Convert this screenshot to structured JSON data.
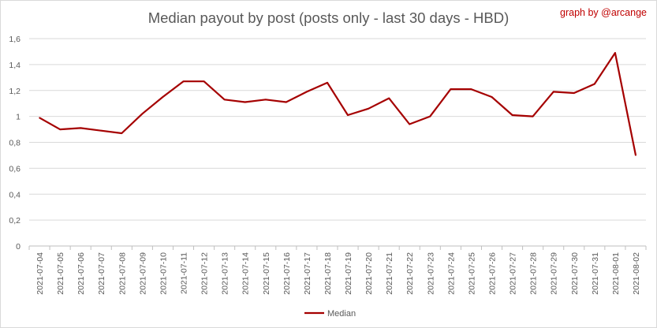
{
  "title": "Median payout by post (posts only - last 30 days - HBD)",
  "credit": "graph by @arcange",
  "chart_data": {
    "type": "line",
    "x": [
      "2021-07-04",
      "2021-07-05",
      "2021-07-06",
      "2021-07-07",
      "2021-07-08",
      "2021-07-09",
      "2021-07-10",
      "2021-07-11",
      "2021-07-12",
      "2021-07-13",
      "2021-07-14",
      "2021-07-15",
      "2021-07-16",
      "2021-07-17",
      "2021-07-18",
      "2021-07-19",
      "2021-07-20",
      "2021-07-21",
      "2021-07-22",
      "2021-07-23",
      "2021-07-24",
      "2021-07-25",
      "2021-07-26",
      "2021-07-27",
      "2021-07-28",
      "2021-07-29",
      "2021-07-30",
      "2021-07-31",
      "2021-08-01",
      "2021-08-02"
    ],
    "series": [
      {
        "name": "Median",
        "color": "#a50000",
        "values": [
          0.99,
          0.9,
          0.91,
          0.89,
          0.87,
          1.02,
          1.15,
          1.27,
          1.27,
          1.13,
          1.11,
          1.13,
          1.11,
          1.19,
          1.26,
          1.01,
          1.06,
          1.14,
          0.94,
          1.0,
          1.21,
          1.21,
          1.15,
          1.01,
          1.0,
          1.19,
          1.18,
          1.25,
          1.49,
          0.7
        ]
      }
    ],
    "yticks": [
      "0",
      "0,2",
      "0,4",
      "0,6",
      "0,8",
      "1",
      "1,2",
      "1,4",
      "1,6"
    ],
    "ylim": [
      0,
      1.6
    ],
    "grid": true,
    "legend": "bottom"
  }
}
